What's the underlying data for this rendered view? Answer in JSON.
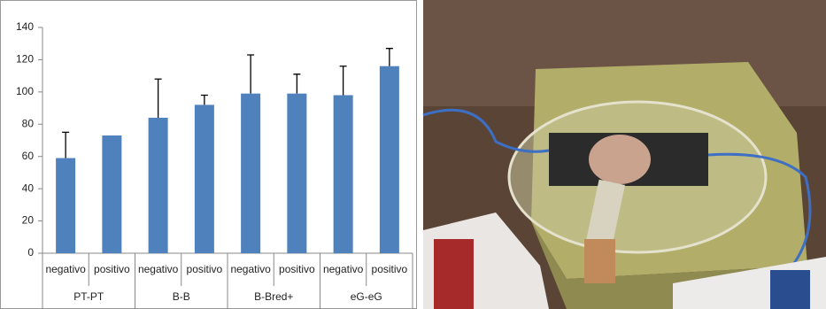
{
  "chart_data": {
    "type": "bar",
    "groups": [
      "PT-PT",
      "B-B",
      "B-Bred+",
      "eG-eG"
    ],
    "categories": [
      "negativo",
      "positivo",
      "negativo",
      "positivo",
      "negativo",
      "positivo",
      "negativo",
      "positivo"
    ],
    "series": [
      {
        "color": "#4f81bd",
        "values": [
          59,
          73,
          84,
          92,
          99,
          99,
          98,
          116
        ],
        "errors": [
          16,
          null,
          24,
          6,
          24,
          12,
          18,
          11
        ]
      }
    ],
    "ylim": [
      0,
      140
    ],
    "yticks": [
      0,
      20,
      40,
      60,
      80,
      100,
      120,
      140
    ],
    "grid": false
  }
}
